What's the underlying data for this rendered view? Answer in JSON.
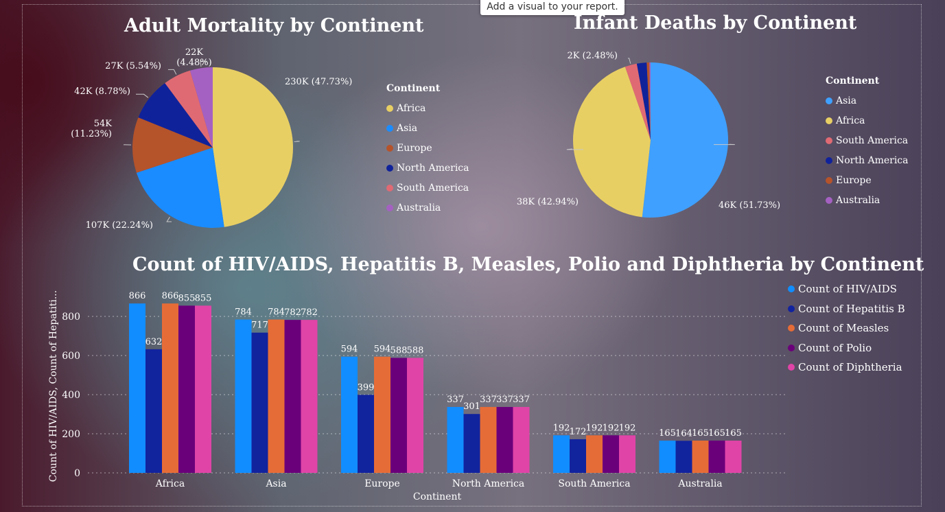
{
  "tooltip": "Add a visual to your report.",
  "chart_data": [
    {
      "type": "pie",
      "title": "Adult Mortality by Continent",
      "legend_title": "Continent",
      "legend_position": "right",
      "slices": [
        {
          "name": "Africa",
          "value": 230,
          "label": "230K (47.73%)",
          "color": "#E8CF64"
        },
        {
          "name": "Asia",
          "value": 107,
          "label": "107K (22.24%)",
          "color": "#1A8CFF"
        },
        {
          "name": "Europe",
          "value": 54,
          "label": "54K (11.23%)",
          "color": "#B5532B"
        },
        {
          "name": "North America",
          "value": 42,
          "label": "42K (8.78%)",
          "color": "#10229A"
        },
        {
          "name": "South America",
          "value": 27,
          "label": "27K (5.54%)",
          "color": "#E06A73"
        },
        {
          "name": "Australia",
          "value": 22,
          "label": "22K (4.48%)",
          "color": "#A561C2"
        }
      ]
    },
    {
      "type": "pie",
      "title": "Infant Deaths by Continent",
      "legend_title": "Continent",
      "legend_position": "right",
      "slices": [
        {
          "name": "Asia",
          "value": 51.73,
          "label": "46K (51.73%)",
          "color": "#3FA0FF"
        },
        {
          "name": "Africa",
          "value": 42.94,
          "label": "38K (42.94%)",
          "color": "#E8CF64"
        },
        {
          "name": "South America",
          "value": 2.48,
          "label": "2K (2.48%)",
          "color": "#E06A73"
        },
        {
          "name": "North America",
          "value": 2.05,
          "label": "",
          "color": "#10229A"
        },
        {
          "name": "Europe",
          "value": 0.55,
          "label": "",
          "color": "#B5532B"
        },
        {
          "name": "Australia",
          "value": 0.25,
          "label": "",
          "color": "#A561C2"
        }
      ]
    },
    {
      "type": "bar",
      "title": "Count of HIV/AIDS, Hepatitis B, Measles, Polio and Diphtheria by Continent",
      "xlabel": "Continent",
      "ylabel": "Count of HIV/AIDS, Count of Hepatiti...",
      "ylim": [
        0,
        900
      ],
      "yticks": [
        0,
        200,
        400,
        600,
        800
      ],
      "grid": true,
      "legend_position": "right",
      "categories": [
        "Africa",
        "Asia",
        "Europe",
        "North America",
        "South America",
        "Australia"
      ],
      "series": [
        {
          "name": "Count of HIV/AIDS",
          "color": "#118DFF",
          "values": [
            866,
            784,
            594,
            337,
            192,
            165
          ]
        },
        {
          "name": "Count of Hepatitis B",
          "color": "#12239E",
          "values": [
            632,
            717,
            399,
            301,
            172,
            164
          ]
        },
        {
          "name": "Count of Measles",
          "color": "#E66C37",
          "values": [
            866,
            784,
            594,
            337,
            192,
            165
          ]
        },
        {
          "name": "Count of Polio",
          "color": "#6B007B",
          "values": [
            855,
            782,
            588,
            337,
            192,
            165
          ]
        },
        {
          "name": "Count of Diphtheria",
          "color": "#E044A7",
          "values": [
            855,
            782,
            588,
            337,
            192,
            165
          ]
        }
      ]
    }
  ]
}
